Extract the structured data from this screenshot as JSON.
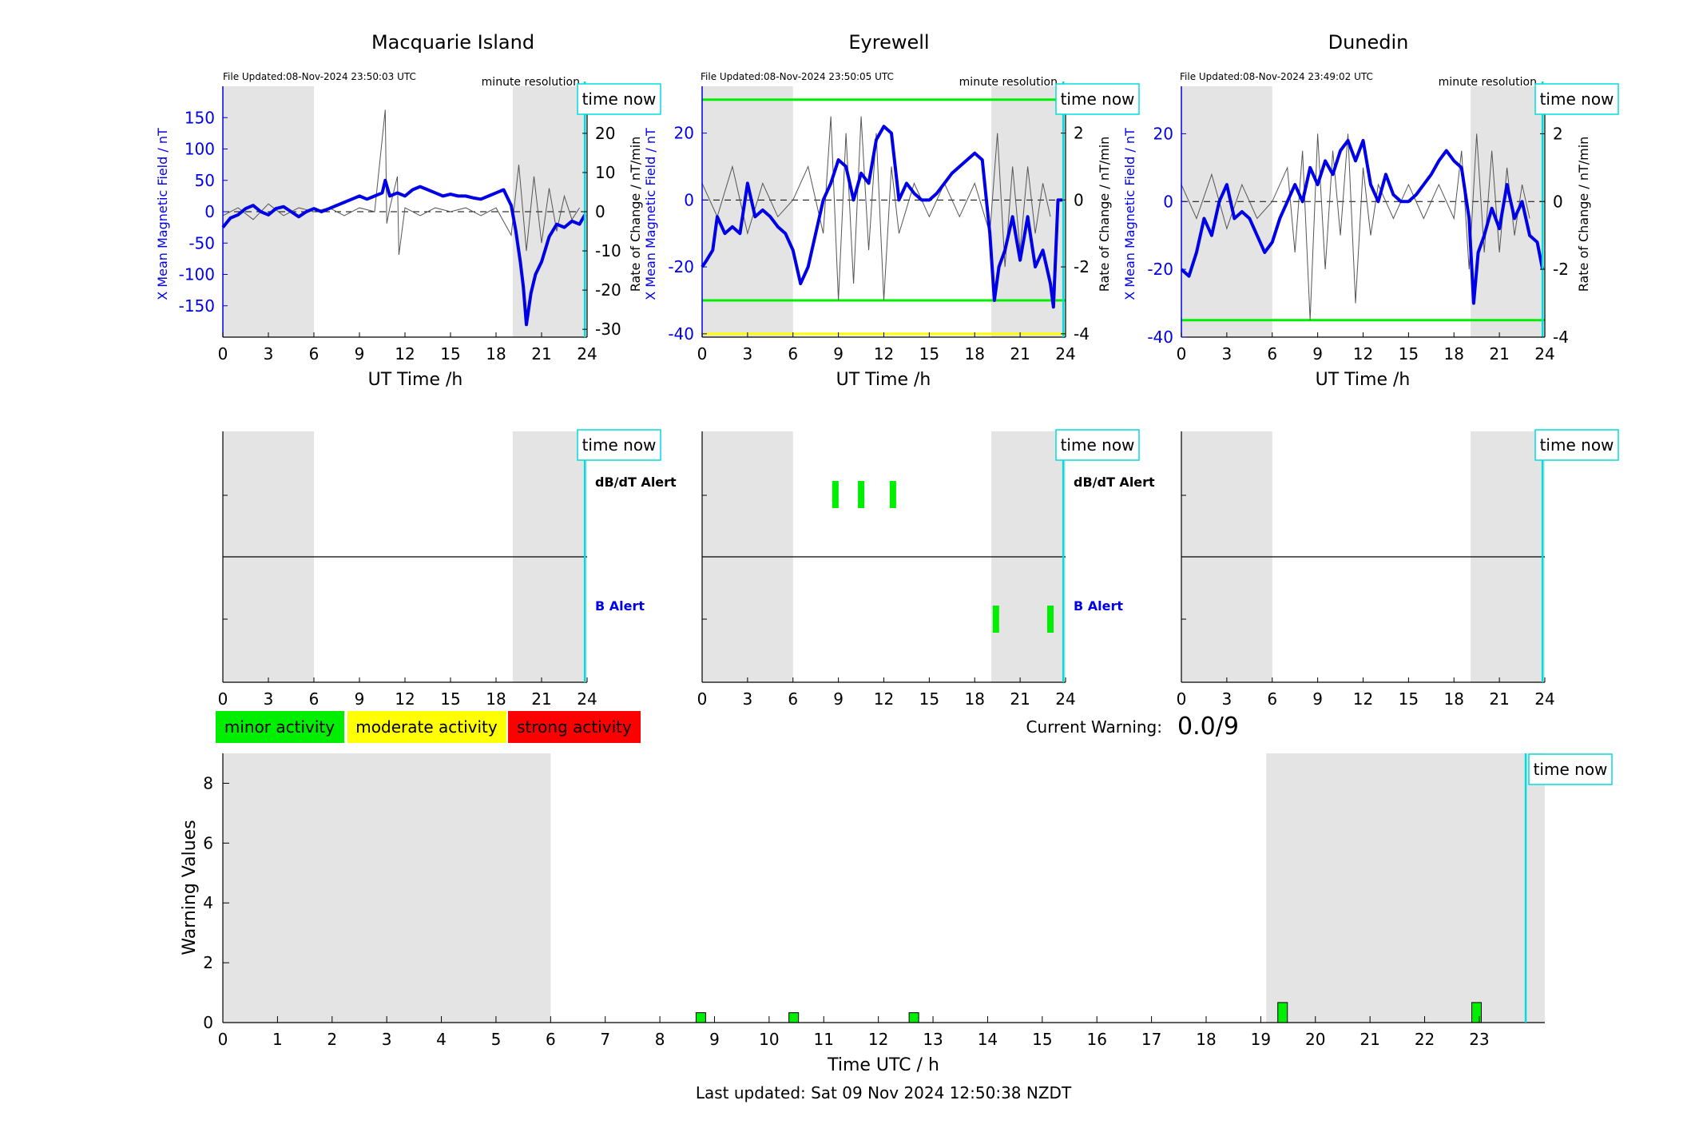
{
  "colors": {
    "shade": "#e4e4e4",
    "series_blue": "#0000e6",
    "rate_gray": "#555555",
    "threshold_green": "#00ee00",
    "threshold_yellow": "#ffff00",
    "time_now": "#00dddd",
    "minor": "#00ee00",
    "moderate": "#ffff00",
    "strong": "#ff0000"
  },
  "labels": {
    "x_axis": "UT Time /h",
    "y_left": "X Mean Magnetic Field / nT",
    "y_right": "Rate of Change / nT/min",
    "resolution": "minute resolution",
    "time_now": "time now",
    "dbdt_alert": "dB/dT Alert",
    "b_alert": "B Alert"
  },
  "legend": {
    "minor": "minor activity",
    "moderate": "moderate activity",
    "strong": "strong activity"
  },
  "warning": {
    "label": "Current Warning:",
    "value": "0.0/9"
  },
  "footer": "Last updated: Sat 09 Nov 2024 12:50:38 NZDT",
  "chart_data": [
    {
      "id": "macquarie",
      "type": "line",
      "title": "Macquarie Island",
      "file_updated": "File Updated:08-Nov-2024 23:50:03 UTC",
      "xlim": [
        0,
        24
      ],
      "xticks": [
        0,
        3,
        6,
        9,
        12,
        15,
        18,
        21,
        24
      ],
      "ylim_left": [
        -200,
        200
      ],
      "yticks_left": [
        -150,
        -100,
        -50,
        0,
        50,
        100,
        150
      ],
      "ylim_right": [
        -32,
        32
      ],
      "yticks_right": [
        -30,
        -20,
        -10,
        0,
        10,
        20
      ],
      "shade": [
        [
          0,
          6
        ],
        [
          19.1,
          24
        ]
      ],
      "thresholds": [],
      "time_now": 23.85,
      "series": [
        {
          "name": "",
          "axis": "left",
          "x": [
            0,
            0.5,
            1,
            1.5,
            2,
            2.5,
            3,
            3.5,
            4,
            4.5,
            5,
            5.5,
            6,
            6.5,
            7,
            7.5,
            8,
            8.5,
            9,
            9.5,
            10,
            10.5,
            10.7,
            11,
            11.5,
            12,
            12.5,
            13,
            13.5,
            14,
            14.5,
            15,
            15.5,
            16,
            16.5,
            17,
            17.5,
            18,
            18.5,
            19,
            19.3,
            19.6,
            19.8,
            20,
            20.3,
            20.6,
            21,
            21.5,
            22,
            22.5,
            23,
            23.5,
            23.85
          ],
          "y": [
            -25,
            -10,
            -5,
            5,
            10,
            0,
            -5,
            5,
            8,
            0,
            -8,
            0,
            5,
            0,
            5,
            10,
            15,
            20,
            25,
            20,
            25,
            30,
            50,
            25,
            30,
            25,
            35,
            40,
            35,
            30,
            25,
            28,
            25,
            25,
            22,
            20,
            25,
            30,
            35,
            10,
            -30,
            -80,
            -120,
            -180,
            -130,
            -100,
            -80,
            -40,
            -20,
            -25,
            -15,
            -20,
            -5
          ]
        },
        {
          "name": "",
          "axis": "right",
          "x": [
            0,
            1,
            2,
            3,
            4,
            5,
            6,
            7,
            8,
            9,
            10,
            10.7,
            10.8,
            11,
            11.5,
            11.6,
            12,
            13,
            14,
            15,
            16,
            17,
            18,
            19,
            19.5,
            20,
            20.5,
            21,
            21.5,
            22,
            22.5,
            23,
            23.5
          ],
          "y": [
            -1,
            1,
            -2,
            2,
            -1,
            1,
            0,
            1,
            -1,
            1,
            0,
            26,
            -3,
            1,
            9,
            -11,
            1,
            -1,
            1,
            0,
            1,
            -1,
            1,
            -6,
            12,
            -10,
            9,
            -8,
            6,
            -5,
            4,
            -2,
            1
          ]
        }
      ],
      "alerts": {
        "dbdt": [],
        "b": []
      }
    },
    {
      "id": "eyrewell",
      "type": "line",
      "title": "Eyrewell",
      "file_updated": "File Updated:08-Nov-2024 23:50:05 UTC",
      "xlim": [
        0,
        24
      ],
      "xticks": [
        0,
        3,
        6,
        9,
        12,
        15,
        18,
        21,
        24
      ],
      "ylim_left": [
        -41,
        34
      ],
      "yticks_left": [
        -40,
        -20,
        0,
        20
      ],
      "ylim_right": [
        -4.1,
        3.4
      ],
      "yticks_right": [
        -4,
        -2,
        0,
        2
      ],
      "shade": [
        [
          0,
          6
        ],
        [
          19.1,
          24
        ]
      ],
      "thresholds": [
        {
          "axis": "left",
          "value": 30,
          "color": "#00ee00"
        },
        {
          "axis": "left",
          "value": -30,
          "color": "#00ee00"
        },
        {
          "axis": "left",
          "value": -40,
          "color": "#ffff00"
        }
      ],
      "time_now": 23.85,
      "series": [
        {
          "name": "",
          "axis": "left",
          "x": [
            0,
            0.3,
            0.7,
            1,
            1.5,
            2,
            2.5,
            3,
            3.5,
            4,
            4.5,
            5,
            5.5,
            6,
            6.5,
            7,
            7.5,
            8,
            8.5,
            9,
            9.5,
            10,
            10.5,
            11,
            11.5,
            12,
            12.5,
            13,
            13.5,
            14,
            14.5,
            15,
            15.5,
            16,
            16.5,
            17,
            17.5,
            18,
            18.5,
            19,
            19.3,
            19.6,
            20,
            20.5,
            21,
            21.5,
            22,
            22.5,
            23,
            23.2,
            23.5,
            23.85
          ],
          "y": [
            -20,
            -18,
            -15,
            -5,
            -10,
            -8,
            -10,
            5,
            -5,
            -3,
            -5,
            -8,
            -10,
            -15,
            -25,
            -20,
            -10,
            0,
            5,
            12,
            10,
            0,
            8,
            5,
            18,
            22,
            20,
            0,
            5,
            2,
            0,
            0,
            2,
            5,
            8,
            10,
            12,
            14,
            12,
            -10,
            -30,
            -20,
            -15,
            -5,
            -18,
            -5,
            -20,
            -15,
            -25,
            -32,
            0,
            0
          ]
        },
        {
          "name": "",
          "axis": "right",
          "x": [
            0,
            1,
            2,
            3,
            4,
            5,
            6,
            7,
            8,
            8.5,
            9,
            9.5,
            10,
            10.5,
            11,
            11.5,
            12,
            12.5,
            13,
            14,
            15,
            16,
            17,
            18,
            19,
            19.5,
            20,
            20.5,
            21,
            21.5,
            22,
            22.5,
            23
          ],
          "y": [
            0.5,
            -0.5,
            1,
            -1,
            0.5,
            -0.5,
            0,
            1,
            -1,
            2.5,
            -3,
            2,
            -2.5,
            2.5,
            -1.5,
            2,
            -3,
            1,
            -1,
            0.5,
            -0.5,
            0.5,
            -0.5,
            0.5,
            -1,
            2,
            -2,
            1,
            -1.5,
            1,
            -1,
            0.5,
            -0.5
          ]
        }
      ],
      "alerts": {
        "dbdt": [
          8.8,
          10.5,
          12.6
        ],
        "b": [
          19.4,
          23.0
        ]
      }
    },
    {
      "id": "dunedin",
      "type": "line",
      "title": "Dunedin",
      "file_updated": "File Updated:08-Nov-2024 23:49:02 UTC",
      "xlim": [
        0,
        24
      ],
      "xticks": [
        0,
        3,
        6,
        9,
        12,
        15,
        18,
        21,
        24
      ],
      "ylim_left": [
        -40,
        34
      ],
      "yticks_left": [
        -40,
        -20,
        0,
        20
      ],
      "ylim_right": [
        -4,
        3.4
      ],
      "yticks_right": [
        -4,
        -2,
        0,
        2
      ],
      "shade": [
        [
          0,
          6
        ],
        [
          19.1,
          24
        ]
      ],
      "thresholds": [
        {
          "axis": "left",
          "value": -35,
          "color": "#00ee00"
        }
      ],
      "time_now": 23.85,
      "series": [
        {
          "name": "",
          "axis": "left",
          "x": [
            0,
            0.5,
            1,
            1.5,
            2,
            2.5,
            3,
            3.5,
            4,
            4.5,
            5,
            5.5,
            6,
            6.5,
            7,
            7.5,
            8,
            8.5,
            9,
            9.5,
            10,
            10.5,
            11,
            11.5,
            12,
            12.5,
            13,
            13.5,
            14,
            14.5,
            15,
            15.5,
            16,
            16.5,
            17,
            17.5,
            18,
            18.5,
            19,
            19.3,
            19.6,
            20,
            20.5,
            21,
            21.5,
            22,
            22.5,
            23,
            23.5,
            23.85
          ],
          "y": [
            -20,
            -22,
            -15,
            -5,
            -10,
            0,
            5,
            -5,
            -3,
            -5,
            -10,
            -15,
            -12,
            -5,
            0,
            5,
            0,
            10,
            5,
            12,
            8,
            15,
            18,
            12,
            18,
            5,
            0,
            8,
            2,
            0,
            0,
            2,
            5,
            8,
            12,
            15,
            12,
            10,
            -5,
            -30,
            -15,
            -10,
            -2,
            -8,
            5,
            -5,
            0,
            -10,
            -12,
            -20
          ]
        },
        {
          "name": "",
          "axis": "right",
          "x": [
            0,
            1,
            2,
            3,
            4,
            5,
            6,
            7,
            7.5,
            8,
            8.5,
            9,
            9.5,
            10,
            10.5,
            11,
            11.5,
            12,
            12.5,
            13,
            14,
            15,
            16,
            17,
            18,
            18.5,
            19,
            19.5,
            20,
            20.5,
            21,
            21.5,
            22,
            22.5,
            23
          ],
          "y": [
            0.5,
            -0.5,
            0.8,
            -0.8,
            0.5,
            -0.5,
            0,
            1,
            -1.5,
            1.5,
            -3.5,
            2,
            -2,
            1.5,
            -1,
            2,
            -3,
            1,
            -1,
            0.5,
            -0.5,
            0.5,
            -0.5,
            0.5,
            -0.5,
            1.5,
            -2,
            2,
            -1.5,
            1.5,
            -1.5,
            1,
            -1,
            0.5,
            -0.5
          ]
        }
      ],
      "alerts": {
        "dbdt": [],
        "b": []
      }
    },
    {
      "id": "warnings",
      "type": "bar",
      "title": "",
      "xlabel": "Time UTC / h",
      "ylabel": "Warning Values",
      "xlim": [
        0,
        24.2
      ],
      "xticks": [
        0,
        1,
        2,
        3,
        4,
        5,
        6,
        7,
        8,
        9,
        10,
        11,
        12,
        13,
        14,
        15,
        16,
        17,
        18,
        19,
        20,
        21,
        22,
        23
      ],
      "ylim": [
        0,
        9
      ],
      "yticks": [
        0,
        2,
        4,
        6,
        8
      ],
      "shade": [
        [
          0,
          6
        ],
        [
          19.1,
          24.2
        ]
      ],
      "time_now": 23.85,
      "bars": [
        {
          "x": 8.75,
          "value": 0.33
        },
        {
          "x": 10.45,
          "value": 0.33
        },
        {
          "x": 12.65,
          "value": 0.33
        },
        {
          "x": 19.4,
          "value": 0.67
        },
        {
          "x": 22.95,
          "value": 0.67
        }
      ]
    }
  ]
}
